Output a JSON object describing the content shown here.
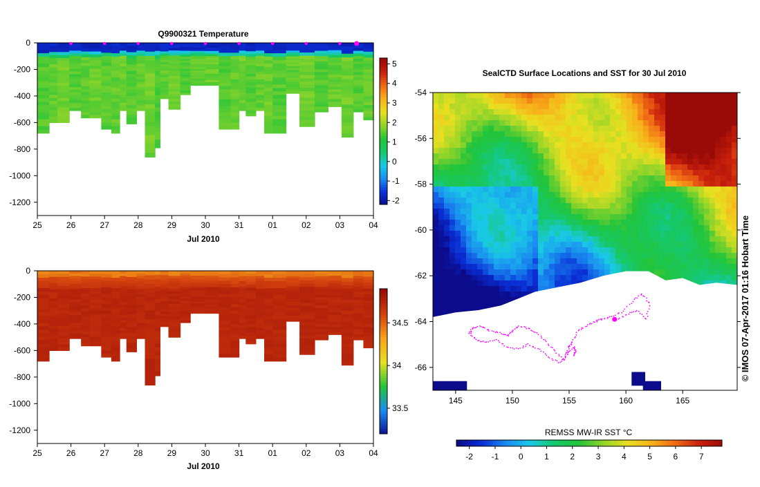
{
  "colors": {
    "temp_scale": [
      "#0b0b8c",
      "#0a2fd6",
      "#1a8cf0",
      "#19c9e6",
      "#16c86a",
      "#22c43a",
      "#8fd42a",
      "#e8e020",
      "#f7b21a",
      "#f06a14",
      "#c8200c",
      "#9a0a06"
    ],
    "sal_scale": [
      "#0b0b8c",
      "#1a8cf0",
      "#22c43a",
      "#e8e020",
      "#f7a21a",
      "#d2400e",
      "#9a0a06"
    ],
    "sst_scale": [
      "#0b0b8c",
      "#0a2fd6",
      "#1a8cf0",
      "#19c9e6",
      "#16c86a",
      "#22c43a",
      "#8fd42a",
      "#e8e020",
      "#f7b21a",
      "#f06a14",
      "#c8200c",
      "#9a0a06"
    ],
    "track": "#ff00ff"
  },
  "temp_panel": {
    "title": "Q9900321  Temperature",
    "xlabel": "Jul 2010"
  },
  "sal_panel": {
    "xlabel": "Jul 2010"
  },
  "map_panel": {
    "title": "SealCTD Surface Locations and SST for 30 Jul 2010",
    "colorbar_label": "REMSS MW-IR SST °C",
    "credit": "© IMOS 07-Apr-2017 01:16 Hobart Time"
  },
  "chart_data": [
    {
      "type": "heatmap",
      "title": "Q9900321  Temperature",
      "xlabel": "Jul 2010",
      "ylabel": "",
      "x_ticks": [
        "25",
        "26",
        "27",
        "28",
        "29",
        "30",
        "31",
        "01",
        "02",
        "03",
        "04"
      ],
      "y_ticks": [
        0,
        -200,
        -400,
        -600,
        -800,
        -1000,
        -1200
      ],
      "ylim": [
        -1300,
        0
      ],
      "colorbar_ticks": [
        -2,
        -1,
        0,
        1,
        2,
        3,
        4,
        5
      ],
      "colorbar_range": [
        -2.2,
        5.3
      ],
      "profile_days": [
        0,
        0.35,
        0.6,
        0.95,
        1.3,
        1.55,
        1.9,
        2.2,
        2.45,
        2.65,
        2.95,
        3.2,
        3.5,
        3.65,
        3.9,
        4.25,
        4.55,
        5.0,
        5.4,
        5.75,
        6.0,
        6.2,
        6.5,
        6.75,
        7.0,
        7.4,
        7.8,
        8.25,
        8.65,
        9.05,
        9.4,
        9.7
      ],
      "profile_depths": [
        680,
        600,
        600,
        510,
        565,
        565,
        650,
        680,
        510,
        610,
        510,
        860,
        790,
        420,
        500,
        390,
        320,
        320,
        650,
        650,
        510,
        550,
        510,
        680,
        680,
        380,
        630,
        520,
        480,
        710,
        520,
        580
      ],
      "surface_temp": -1.7,
      "deep_temp": 1.6,
      "marker_days": [
        1,
        2,
        3,
        4,
        5,
        6,
        7,
        8,
        9,
        9.5
      ]
    },
    {
      "type": "heatmap",
      "title": "",
      "xlabel": "Jul 2010",
      "ylabel": "",
      "x_ticks": [
        "25",
        "26",
        "27",
        "28",
        "29",
        "30",
        "31",
        "01",
        "02",
        "03",
        "04"
      ],
      "y_ticks": [
        0,
        -200,
        -400,
        -600,
        -800,
        -1000,
        -1200
      ],
      "ylim": [
        -1300,
        0
      ],
      "colorbar_ticks": [
        33.5,
        34,
        34.5
      ],
      "colorbar_range": [
        33.2,
        34.9
      ],
      "surface_sal": 34.4,
      "deep_sal": 34.75
    },
    {
      "type": "heatmap",
      "title": "SealCTD Surface Locations and SST for 30 Jul 2010",
      "xlabel": "",
      "ylabel": "",
      "x_ticks": [
        145,
        150,
        155,
        160,
        165
      ],
      "y_ticks": [
        -54,
        -56,
        -58,
        -60,
        -62,
        -64,
        -66
      ],
      "xlim": [
        143,
        169.8
      ],
      "ylim": [
        -67,
        -54
      ],
      "colorbar_label": "REMSS MW-IR SST °C",
      "colorbar_ticks": [
        -2,
        -1,
        0,
        1,
        2,
        3,
        4,
        5,
        6,
        7
      ],
      "colorbar_range": [
        -2.5,
        7.8
      ],
      "track_lon": [
        159.2,
        160.1,
        161.0,
        161.8,
        162.1,
        161.4,
        160.6,
        159.6,
        158.6,
        157.8,
        157.3,
        156.5,
        155.8,
        155.3,
        155.0,
        154.8,
        154.5,
        153.8,
        153.0,
        152.2,
        151.4,
        150.6,
        150.0,
        149.6,
        148.9,
        148.0,
        147.2,
        146.5,
        146.2,
        146.8,
        147.6,
        148.6,
        149.5,
        150.6,
        151.4,
        152.4,
        153.3,
        154.2,
        154.9,
        155.4,
        155.6,
        155.3
      ],
      "track_lat": [
        -63.9,
        -63.7,
        -63.5,
        -63.9,
        -63.2,
        -62.8,
        -63.1,
        -63.6,
        -63.8,
        -63.9,
        -64.0,
        -64.2,
        -64.4,
        -64.9,
        -65.1,
        -65.4,
        -65.7,
        -65.3,
        -64.9,
        -64.5,
        -64.3,
        -64.2,
        -64.4,
        -64.6,
        -64.5,
        -64.4,
        -64.2,
        -64.3,
        -64.5,
        -64.8,
        -64.9,
        -64.8,
        -65.1,
        -65.2,
        -65.0,
        -65.2,
        -65.6,
        -65.8,
        -65.4,
        -65.1,
        -65.3,
        -65.5
      ],
      "current_lon": 159.0,
      "current_lat": -63.9
    }
  ]
}
